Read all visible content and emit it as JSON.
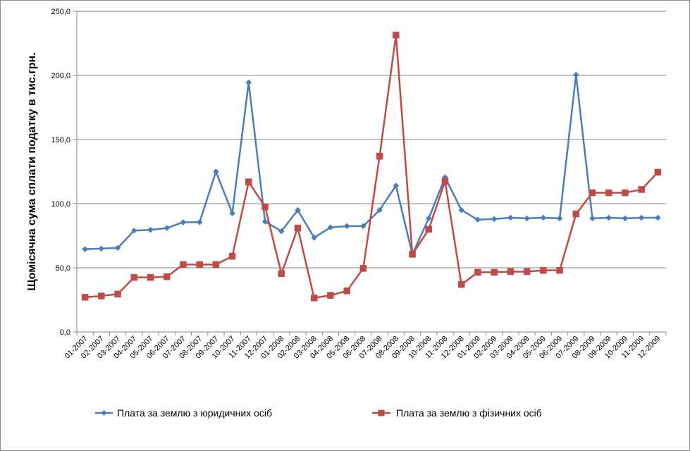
{
  "chart_data": {
    "type": "line",
    "title": "",
    "xlabel": "",
    "ylabel": "Щомісячна сума сплати податку  в тис.грн.",
    "ylim": [
      0,
      250
    ],
    "yticks": [
      "0,0",
      "50,0",
      "100,0",
      "150,0",
      "200,0",
      "250,0"
    ],
    "grid": "horizontal",
    "legend_position": "bottom",
    "categories": [
      "01-2007",
      "02-2007",
      "03-2007",
      "04-2007",
      "05-2007",
      "06-2007",
      "07-2007",
      "08-2007",
      "09-2007",
      "10-2007",
      "11-2007",
      "12-2007",
      "01-2008",
      "02-2008",
      "03-2008",
      "04-2008",
      "05-2008",
      "06-2008",
      "07-2008",
      "08-2008",
      "09-2008",
      "10-2008",
      "11-2008",
      "12-2008",
      "01-2009",
      "02-2009",
      "03-2009",
      "04-2009",
      "05-2009",
      "06-2009",
      "07-2009",
      "08-2009",
      "09-2009",
      "10-2009",
      "11-2009",
      "12-2009"
    ],
    "series": [
      {
        "name": "Плата за землю з юридичних осіб",
        "color": "#4a7ebb",
        "marker": "diamond",
        "values": [
          64.5,
          65.0,
          65.5,
          79.0,
          79.5,
          81.0,
          85.5,
          85.5,
          125.0,
          92.5,
          194.5,
          86.0,
          78.5,
          95.0,
          73.5,
          81.5,
          82.5,
          82.5,
          95.0,
          114.0,
          60.5,
          88.5,
          120.5,
          95.0,
          87.5,
          88.0,
          89.0,
          88.5,
          89.0,
          88.5,
          200.5,
          88.5,
          89.0,
          88.5,
          89.0,
          89.0
        ]
      },
      {
        "name": "Плата за землю з фізичних осіб",
        "color": "#be4b48",
        "marker": "square",
        "values": [
          27.0,
          28.0,
          29.5,
          42.5,
          42.5,
          43.0,
          52.5,
          52.5,
          52.5,
          59.0,
          117.0,
          97.5,
          45.5,
          81.0,
          26.5,
          28.5,
          32.0,
          49.5,
          137.0,
          231.5,
          60.5,
          80.0,
          117.5,
          37.0,
          46.5,
          46.5,
          47.0,
          47.0,
          48.0,
          48.0,
          92.0,
          108.5,
          108.5,
          108.5,
          111.0,
          124.5
        ]
      }
    ]
  }
}
